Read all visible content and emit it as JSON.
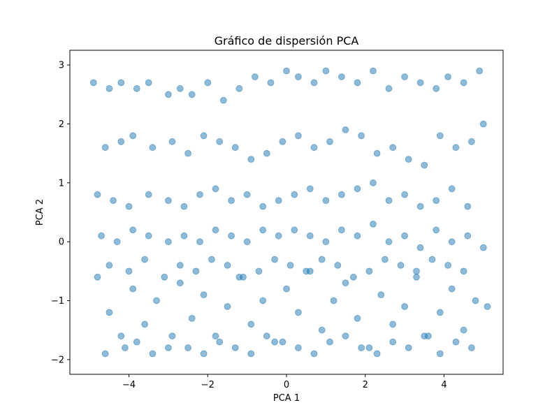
{
  "chart_data": {
    "type": "scatter",
    "title": "Gráfico de dispersión PCA",
    "xlabel": "PCA 1",
    "ylabel": "PCA 2",
    "xlim": [
      -5.5,
      5.5
    ],
    "ylim": [
      -2.25,
      3.25
    ],
    "x_ticks": [
      -4,
      -2,
      0,
      2,
      4
    ],
    "x_tick_labels": [
      "−4",
      "−2",
      "0",
      "2",
      "4"
    ],
    "y_ticks": [
      -2,
      -1,
      0,
      1,
      2,
      3
    ],
    "y_tick_labels": [
      "−2",
      "−1",
      "0",
      "1",
      "2",
      "3"
    ],
    "grid": false,
    "legend": "none",
    "marker_color": "#1f77b4",
    "marker_alpha": 0.5,
    "points": {
      "x": [
        -4.9,
        -4.5,
        -4.2,
        -3.8,
        -3.5,
        -3.0,
        -2.7,
        -2.4,
        -2.0,
        -1.6,
        -1.2,
        -0.8,
        -0.4,
        0.0,
        0.3,
        0.7,
        1.0,
        1.4,
        1.8,
        2.2,
        2.6,
        3.0,
        3.4,
        3.8,
        4.1,
        4.5,
        4.9,
        -4.6,
        -4.2,
        -3.9,
        -3.4,
        -2.9,
        -2.5,
        -2.1,
        -1.7,
        -1.3,
        -0.9,
        -0.5,
        -0.1,
        0.3,
        0.7,
        1.1,
        1.5,
        1.9,
        2.3,
        2.7,
        3.1,
        3.5,
        3.9,
        4.3,
        4.7,
        5.0,
        -4.8,
        -4.4,
        -4.0,
        -3.5,
        -3.0,
        -2.6,
        -2.2,
        -1.8,
        -1.4,
        -1.0,
        -0.6,
        -0.2,
        0.2,
        0.6,
        1.0,
        1.4,
        1.8,
        2.2,
        2.6,
        3.0,
        3.4,
        3.8,
        4.2,
        4.6,
        -4.7,
        -4.3,
        -3.9,
        -3.5,
        -3.0,
        -2.6,
        -2.2,
        -1.8,
        -1.4,
        -1.0,
        -0.6,
        -0.2,
        0.2,
        0.6,
        1.0,
        1.4,
        1.8,
        2.2,
        2.6,
        3.0,
        3.4,
        3.8,
        4.2,
        4.6,
        5.0,
        -4.8,
        -4.5,
        -4.2,
        -3.9,
        -3.6,
        -3.3,
        -3.0,
        -2.7,
        -2.4,
        -2.1,
        -1.8,
        -1.5,
        -1.2,
        -0.9,
        -0.6,
        -0.3,
        0.0,
        0.3,
        0.6,
        0.9,
        1.2,
        1.5,
        1.8,
        2.1,
        2.4,
        2.7,
        3.0,
        3.3,
        3.6,
        3.9,
        4.2,
        4.5,
        4.8,
        5.1,
        -4.6,
        -4.1,
        -3.8,
        -3.4,
        -2.9,
        -2.5,
        -2.1,
        -1.7,
        -1.3,
        -0.9,
        -0.5,
        -0.1,
        0.3,
        0.7,
        1.1,
        1.5,
        1.9,
        2.3,
        2.7,
        3.1,
        3.5,
        3.9,
        4.3,
        4.7,
        -4.5,
        -4.0,
        -3.6,
        -3.1,
        -2.7,
        -2.3,
        -1.9,
        -1.5,
        -1.1,
        -0.7,
        -0.3,
        0.1,
        0.5,
        0.9,
        1.3,
        1.7,
        2.1,
        2.5,
        2.9,
        3.3,
        3.7,
        4.1,
        4.5
      ],
      "y": [
        2.7,
        2.6,
        2.7,
        2.6,
        2.7,
        2.5,
        2.6,
        2.5,
        2.7,
        2.4,
        2.6,
        2.8,
        2.7,
        2.9,
        2.8,
        2.7,
        2.9,
        2.8,
        2.7,
        2.9,
        2.6,
        2.8,
        2.7,
        2.6,
        2.8,
        2.7,
        2.9,
        1.6,
        1.7,
        1.8,
        1.6,
        1.7,
        1.5,
        1.8,
        1.7,
        1.6,
        1.4,
        1.5,
        1.7,
        1.8,
        1.6,
        1.7,
        1.9,
        1.8,
        1.5,
        1.6,
        1.4,
        1.3,
        1.8,
        1.6,
        1.7,
        2.0,
        0.8,
        0.7,
        0.6,
        0.8,
        0.7,
        0.6,
        0.8,
        0.9,
        0.7,
        0.8,
        0.6,
        0.7,
        0.8,
        0.9,
        0.7,
        0.8,
        0.9,
        1.0,
        0.7,
        0.8,
        0.6,
        0.7,
        0.9,
        0.6,
        0.1,
        0.0,
        0.2,
        0.1,
        0.0,
        0.1,
        0.0,
        0.2,
        0.1,
        0.0,
        0.2,
        0.1,
        0.2,
        0.1,
        0.0,
        0.2,
        0.1,
        0.3,
        0.0,
        0.1,
        -0.1,
        0.2,
        0.0,
        0.1,
        -0.1,
        -0.6,
        -1.2,
        -1.6,
        -0.8,
        -1.4,
        -1.0,
        -1.8,
        -0.7,
        -1.3,
        -0.9,
        -1.6,
        -1.1,
        -0.6,
        -1.4,
        -1.0,
        -1.7,
        -0.8,
        -1.2,
        -0.5,
        -1.5,
        -1.0,
        -0.7,
        -1.3,
        -1.8,
        -0.9,
        -1.4,
        -1.1,
        -0.6,
        -1.6,
        -1.2,
        -0.8,
        -1.5,
        -1.0,
        -1.1,
        -1.9,
        -1.8,
        -1.7,
        -1.9,
        -1.6,
        -1.8,
        -1.9,
        -1.7,
        -1.8,
        -1.9,
        -1.6,
        -1.7,
        -1.8,
        -1.9,
        -1.7,
        -1.6,
        -1.8,
        -1.9,
        -1.7,
        -1.8,
        -1.6,
        -1.9,
        -1.7,
        -1.8,
        -0.4,
        -0.5,
        -0.3,
        -0.6,
        -0.4,
        -0.5,
        -0.3,
        -0.4,
        -0.6,
        -0.5,
        -0.3,
        -0.4,
        -0.5,
        -0.3,
        -0.4,
        -0.6,
        -0.5,
        -0.3,
        -0.4,
        -0.5,
        -0.3,
        -0.4,
        -0.5
      ]
    }
  }
}
